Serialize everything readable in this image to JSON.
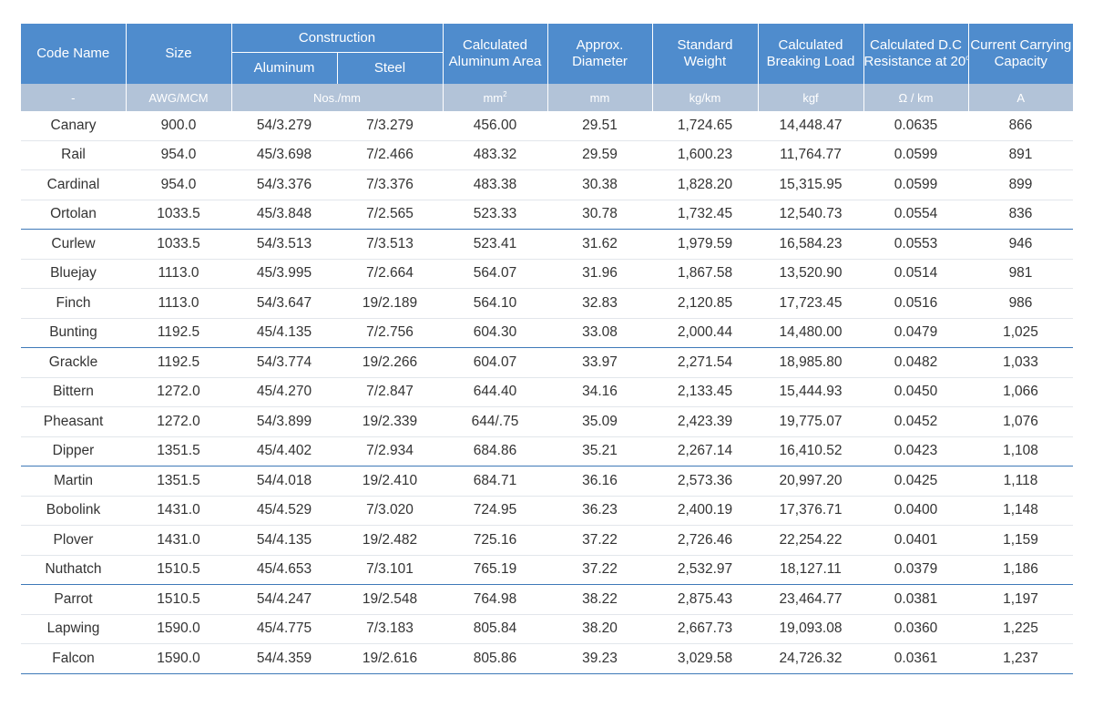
{
  "headers": {
    "code_name": "Code Name",
    "size": "Size",
    "construction": "Construction",
    "aluminum": "Aluminum",
    "steel": "Steel",
    "calc_area_1": "Calculated",
    "calc_area_2": "Aluminum Area",
    "diameter_1": "Approx.",
    "diameter_2": "Diameter",
    "weight_1": "Standard",
    "weight_2": "Weight",
    "breaking_1": "Calculated",
    "breaking_2": "Breaking Load",
    "resistance_1": "Calculated D.C",
    "resistance_2": "Resistance at 20",
    "resistance_deg": "o",
    "resistance_unit": "C",
    "capacity_1": "Current Carrying",
    "capacity_2": "Capacity"
  },
  "units": {
    "code_name": "-",
    "size": "AWG/MCM",
    "construction": "Nos./mm",
    "area": "mm",
    "area_sup": "2",
    "diameter": "mm",
    "weight": "kg/km",
    "breaking": "kgf",
    "resistance": "Ω / km",
    "capacity": "A"
  },
  "rows": [
    [
      "Canary",
      "900.0",
      "54/3.279",
      "7/3.279",
      "456.00",
      "29.51",
      "1,724.65",
      "14,448.47",
      "0.0635",
      "866"
    ],
    [
      "Rail",
      "954.0",
      "45/3.698",
      "7/2.466",
      "483.32",
      "29.59",
      "1,600.23",
      "11,764.77",
      "0.0599",
      "891"
    ],
    [
      "Cardinal",
      "954.0",
      "54/3.376",
      "7/3.376",
      "483.38",
      "30.38",
      "1,828.20",
      "15,315.95",
      "0.0599",
      "899"
    ],
    [
      "Ortolan",
      "1033.5",
      "45/3.848",
      "7/2.565",
      "523.33",
      "30.78",
      "1,732.45",
      "12,540.73",
      "0.0554",
      "836"
    ],
    [
      "Curlew",
      "1033.5",
      "54/3.513",
      "7/3.513",
      "523.41",
      "31.62",
      "1,979.59",
      "16,584.23",
      "0.0553",
      "946"
    ],
    [
      "Bluejay",
      "1113.0",
      "45/3.995",
      "7/2.664",
      "564.07",
      "31.96",
      "1,867.58",
      "13,520.90",
      "0.0514",
      "981"
    ],
    [
      "Finch",
      "1113.0",
      "54/3.647",
      "19/2.189",
      "564.10",
      "32.83",
      "2,120.85",
      "17,723.45",
      "0.0516",
      "986"
    ],
    [
      "Bunting",
      "1192.5",
      "45/4.135",
      "7/2.756",
      "604.30",
      "33.08",
      "2,000.44",
      "14,480.00",
      "0.0479",
      "1,025"
    ],
    [
      "Grackle",
      "1192.5",
      "54/3.774",
      "19/2.266",
      "604.07",
      "33.97",
      "2,271.54",
      "18,985.80",
      "0.0482",
      "1,033"
    ],
    [
      "Bittern",
      "1272.0",
      "45/4.270",
      "7/2.847",
      "644.40",
      "34.16",
      "2,133.45",
      "15,444.93",
      "0.0450",
      "1,066"
    ],
    [
      "Pheasant",
      "1272.0",
      "54/3.899",
      "19/2.339",
      "644/.75",
      "35.09",
      "2,423.39",
      "19,775.07",
      "0.0452",
      "1,076"
    ],
    [
      "Dipper",
      "1351.5",
      "45/4.402",
      "7/2.934",
      "684.86",
      "35.21",
      "2,267.14",
      "16,410.52",
      "0.0423",
      "1,108"
    ],
    [
      "Martin",
      "1351.5",
      "54/4.018",
      "19/2.410",
      "684.71",
      "36.16",
      "2,573.36",
      "20,997.20",
      "0.0425",
      "1,118"
    ],
    [
      "Bobolink",
      "1431.0",
      "45/4.529",
      "7/3.020",
      "724.95",
      "36.23",
      "2,400.19",
      "17,376.71",
      "0.0400",
      "1,148"
    ],
    [
      "Plover",
      "1431.0",
      "54/4.135",
      "19/2.482",
      "725.16",
      "37.22",
      "2,726.46",
      "22,254.22",
      "0.0401",
      "1,159"
    ],
    [
      "Nuthatch",
      "1510.5",
      "45/4.653",
      "7/3.101",
      "765.19",
      "37.22",
      "2,532.97",
      "18,127.11",
      "0.0379",
      "1,186"
    ],
    [
      "Parrot",
      "1510.5",
      "54/4.247",
      "19/2.548",
      "764.98",
      "38.22",
      "2,875.43",
      "23,464.77",
      "0.0381",
      "1,197"
    ],
    [
      "Lapwing",
      "1590.0",
      "45/4.775",
      "7/3.183",
      "805.84",
      "38.20",
      "2,667.73",
      "19,093.08",
      "0.0360",
      "1,225"
    ],
    [
      "Falcon",
      "1590.0",
      "54/4.359",
      "19/2.616",
      "805.86",
      "39.23",
      "3,029.58",
      "24,726.32",
      "0.0361",
      "1,237"
    ]
  ],
  "colors": {
    "header_bg": "#4f8ccd",
    "units_bg": "#b2c3d8",
    "group_rule": "#3e79b8",
    "row_rule": "#e2e6eb",
    "text": "#333333"
  }
}
